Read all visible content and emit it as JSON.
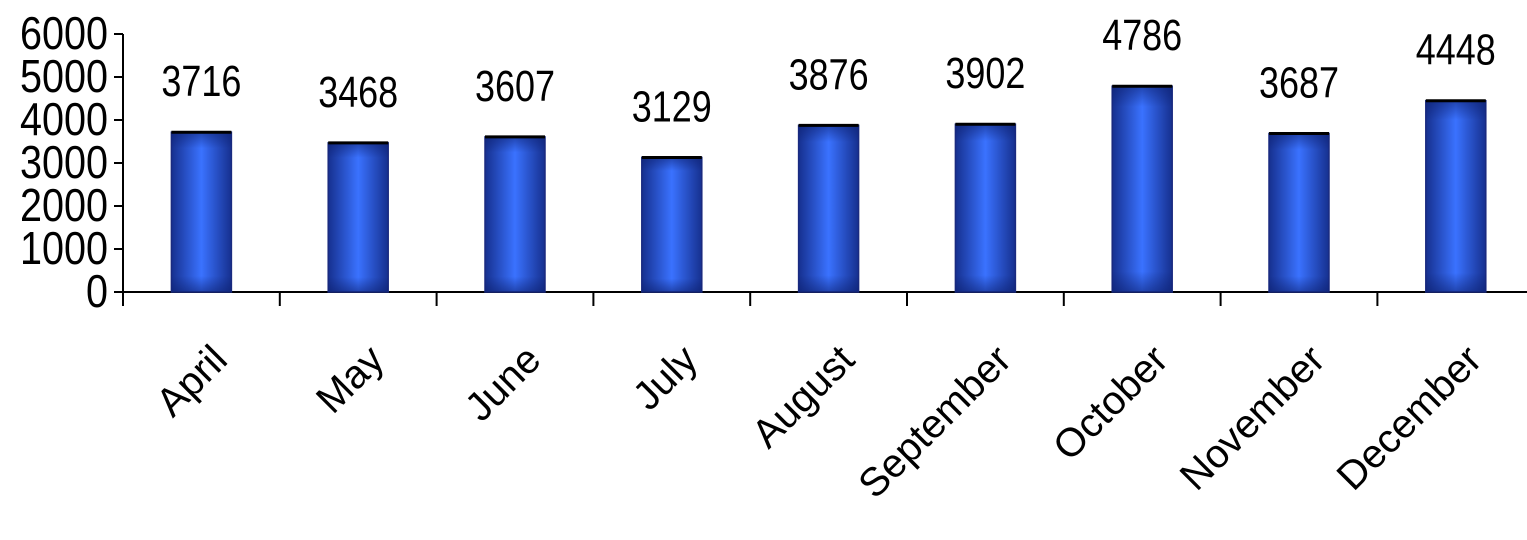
{
  "chart_data": {
    "type": "bar",
    "categories": [
      "April",
      "May",
      "June",
      "July",
      "August",
      "September",
      "October",
      "November",
      "December"
    ],
    "values": [
      3716,
      3468,
      3607,
      3129,
      3876,
      3902,
      4786,
      3687,
      4448
    ],
    "data_labels": [
      "3716",
      "3468",
      "3607",
      "3129",
      "3876",
      "3902",
      "4786",
      "3687",
      "4448"
    ],
    "title": "",
    "xlabel": "",
    "ylabel": "",
    "ylim": [
      0,
      6000
    ],
    "yticks": [
      0,
      1000,
      2000,
      3000,
      4000,
      5000,
      6000
    ],
    "ytick_labels": [
      "0",
      "1000",
      "2000",
      "3000",
      "4000",
      "5000",
      "6000"
    ],
    "grid": false,
    "legend": "none",
    "colors": {
      "bar_edge": "#1a2a80",
      "bar_center": "#3a72ff",
      "bar_side": "#16308f",
      "axis": "#000000"
    }
  }
}
